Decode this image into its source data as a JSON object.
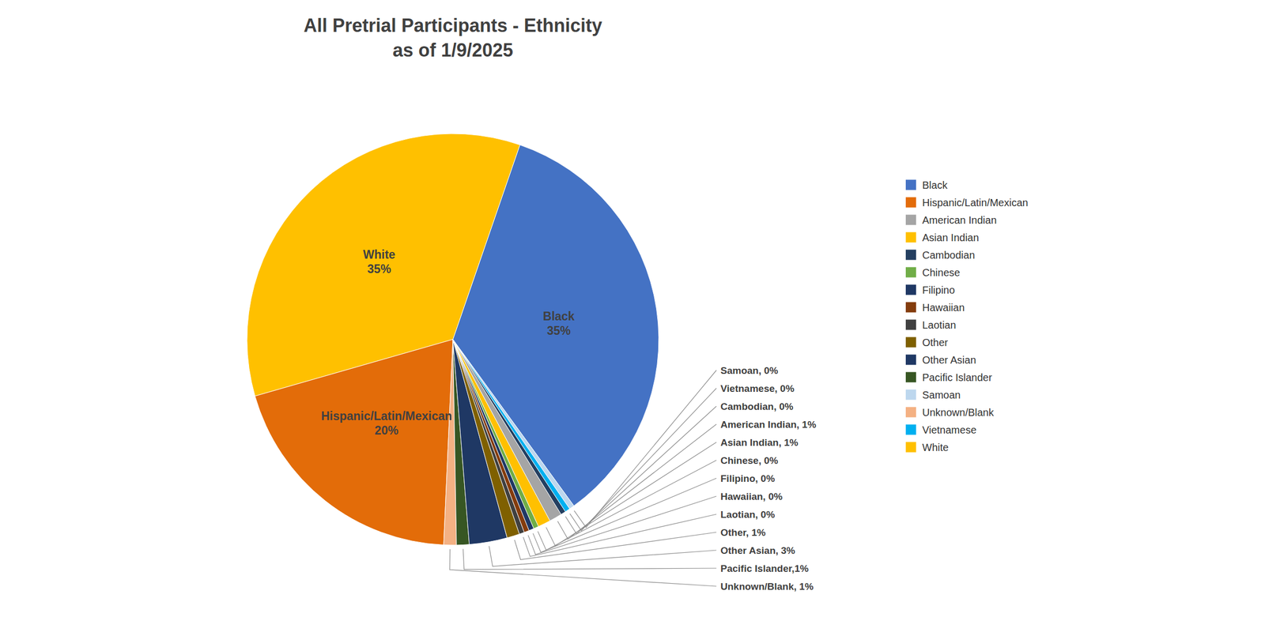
{
  "chart_data": {
    "type": "pie",
    "title": "All Pretrial Participants - Ethnicity\nas of 1/9/2025",
    "categories": [
      "Black",
      "White",
      "Hispanic/Latin/Mexican",
      "Unknown/Blank",
      "Pacific Islander",
      "Other Asian",
      "Other",
      "Laotian",
      "Hawaiian",
      "Filipino",
      "Chinese",
      "Asian Indian",
      "American Indian",
      "Cambodian",
      "Vietnamese",
      "Samoan"
    ],
    "values": [
      35,
      35,
      20,
      1.0,
      1.0,
      3.0,
      1.0,
      0.4,
      0.4,
      0.4,
      0.4,
      1.0,
      1.0,
      0.4,
      0.4,
      0.4
    ],
    "value_labels": [
      "Black\n35%",
      "White\n35%",
      "Hispanic/Latin/Mexican\n20%",
      "Unknown/Blank, 1%",
      "Pacific Islander,1%",
      "Other Asian, 3%",
      "Other, 1%",
      "Laotian, 0%",
      "Hawaiian, 0%",
      "Filipino, 0%",
      "Chinese, 0%",
      "Asian Indian, 1%",
      "American Indian, 1%",
      "Cambodian, 0%",
      "Vietnamese, 0%",
      "Samoan, 0%"
    ],
    "colors": [
      "#4472C4",
      "#FFC000",
      "#E36C09",
      "#F4B183",
      "#375623",
      "#1F3864",
      "#7F6000",
      "#404040",
      "#843C0C",
      "#1F3864",
      "#70AD47",
      "#FFC000",
      "#A5A5A5",
      "#243F60",
      "#00B0F0",
      "#BDD7EE"
    ],
    "data_labels": true,
    "legend": "right",
    "legend_order": [
      "Black",
      "Hispanic/Latin/Mexican",
      "American Indian",
      "Asian Indian",
      "Cambodian",
      "Chinese",
      "Filipino",
      "Hawaiian",
      "Laotian",
      "Other",
      "Other Asian",
      "Pacific Islander",
      "Samoan",
      "Unknown/Blank",
      "Vietnamese",
      "White"
    ]
  }
}
